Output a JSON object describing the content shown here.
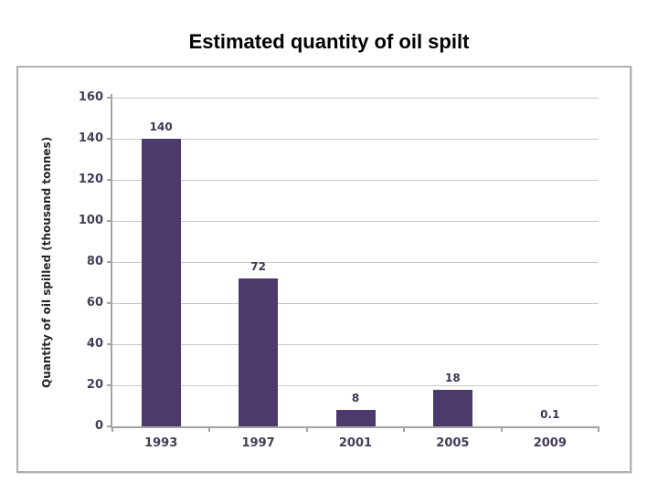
{
  "page": {
    "title": "Estimated quantity of oil spilt"
  },
  "chart_data": {
    "type": "bar",
    "title": "Estimated quantity of oil spilt",
    "categories": [
      "1993",
      "1997",
      "2001",
      "2005",
      "2009"
    ],
    "values": [
      140,
      72,
      8,
      18,
      0.1
    ],
    "data_labels": [
      "140",
      "72",
      "8",
      "18",
      "0.1"
    ],
    "xlabel": "",
    "ylabel": "Quantity of oil spilled (thousand tonnes)",
    "ylim": [
      0,
      160
    ],
    "yticks": [
      0,
      20,
      40,
      60,
      80,
      100,
      120,
      140,
      160
    ],
    "grid": "horizontal",
    "legend_position": "none",
    "colors": {
      "bar": "#4B3A6B",
      "tick_label": "#453C55",
      "data_label": "#3E3550",
      "axis_line": "#A3A3A3",
      "gridline": "#C8C8C8",
      "frame_border": "#B0B0B0",
      "title_text": "#000000"
    }
  }
}
